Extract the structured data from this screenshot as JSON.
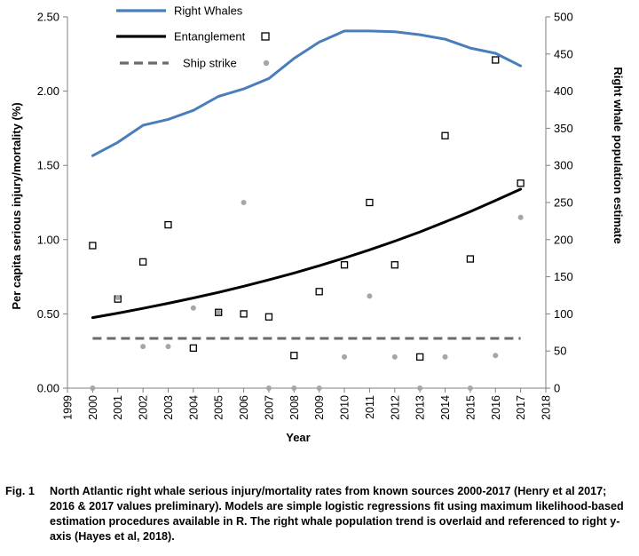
{
  "chart_data": {
    "type": "line",
    "x_label": "Year",
    "y_left_label": "Per capita serious injury/mortality (%)",
    "y_right_label": "Right whale population  estimate",
    "x_range": [
      1999,
      2018
    ],
    "x_ticks": [
      "1999",
      "2000",
      "2001",
      "2002",
      "2003",
      "2004",
      "2005",
      "2006",
      "2007",
      "2008",
      "2009",
      "2010",
      "2011",
      "2012",
      "2013",
      "2014",
      "2015",
      "2016",
      "2017",
      "2018"
    ],
    "y_left_range": [
      0,
      2.5
    ],
    "y_left_ticks": [
      "0.00",
      "0.50",
      "1.00",
      "1.50",
      "2.00",
      "2.50"
    ],
    "y_right_range": [
      0,
      500
    ],
    "y_right_ticks": [
      "0",
      "50",
      "100",
      "150",
      "200",
      "250",
      "300",
      "350",
      "400",
      "450",
      "500"
    ],
    "grid": false,
    "legend_position": "top-left",
    "series": [
      {
        "name": "Right Whales",
        "kind": "line",
        "axis": "right",
        "color": "#4a7ebb",
        "x": [
          2000,
          2001,
          2002,
          2003,
          2004,
          2005,
          2006,
          2007,
          2008,
          2009,
          2010,
          2011,
          2012,
          2013,
          2014,
          2015,
          2016,
          2017
        ],
        "y": [
          313,
          331,
          354,
          362,
          374,
          393,
          403,
          417,
          444,
          466,
          481,
          481,
          480,
          476,
          470,
          458,
          451,
          434
        ]
      },
      {
        "name": "Entanglement",
        "kind": "line",
        "axis": "left",
        "color": "#000000",
        "x": [
          2000,
          2001,
          2002,
          2003,
          2004,
          2005,
          2006,
          2007,
          2008,
          2009,
          2010,
          2011,
          2012,
          2013,
          2014,
          2015,
          2016,
          2017
        ],
        "y": [
          0.475,
          0.505,
          0.537,
          0.571,
          0.607,
          0.645,
          0.686,
          0.729,
          0.775,
          0.824,
          0.876,
          0.931,
          0.99,
          1.052,
          1.119,
          1.189,
          1.264,
          1.34
        ]
      },
      {
        "name": "Entanglement",
        "kind": "points",
        "axis": "left",
        "marker": "square",
        "color": "#000000",
        "x": [
          2000,
          2001,
          2002,
          2003,
          2004,
          2005,
          2006,
          2007,
          2008,
          2009,
          2010,
          2011,
          2012,
          2013,
          2014,
          2015,
          2016,
          2017
        ],
        "y": [
          0.96,
          0.6,
          0.85,
          1.1,
          0.27,
          0.51,
          0.5,
          0.48,
          0.22,
          0.65,
          0.83,
          1.25,
          0.83,
          0.21,
          1.7,
          0.87,
          2.21,
          1.38
        ]
      },
      {
        "name": "Ship strike",
        "kind": "line",
        "axis": "left",
        "dashed": true,
        "color": "#6b6b6b",
        "x": [
          2000,
          2017
        ],
        "y": [
          0.335,
          0.335
        ]
      },
      {
        "name": "Ship strike",
        "kind": "points",
        "axis": "left",
        "marker": "circle",
        "color": "#a6a6a6",
        "x": [
          2000,
          2001,
          2002,
          2003,
          2004,
          2005,
          2006,
          2007,
          2008,
          2009,
          2010,
          2011,
          2012,
          2013,
          2014,
          2015,
          2016,
          2017
        ],
        "y": [
          0.0,
          0.61,
          0.28,
          0.28,
          0.54,
          0.51,
          1.25,
          0.0,
          0.0,
          0.0,
          0.21,
          0.62,
          0.21,
          0.0,
          0.21,
          0.0,
          0.22,
          1.15
        ]
      }
    ],
    "legend": [
      {
        "label": "Right Whales",
        "style": "solid",
        "color": "#4a7ebb",
        "marker": ""
      },
      {
        "label": "Entanglement",
        "style": "solid",
        "color": "#000000",
        "marker": "square"
      },
      {
        "label": "Ship strike",
        "style": "dashed",
        "color": "#6b6b6b",
        "marker": "circle"
      }
    ]
  },
  "caption": {
    "label": "Fig. 1",
    "text": "North Atlantic right whale serious injury/mortality rates from known sources 2000-2017 (Henry et al 2017; 2016 & 2017 values preliminary). Models are simple logistic regressions fit using maximum likelihood-based estimation procedures available in R. The right whale population trend is overlaid and referenced to right y-axis (Hayes et al, 2018)."
  }
}
